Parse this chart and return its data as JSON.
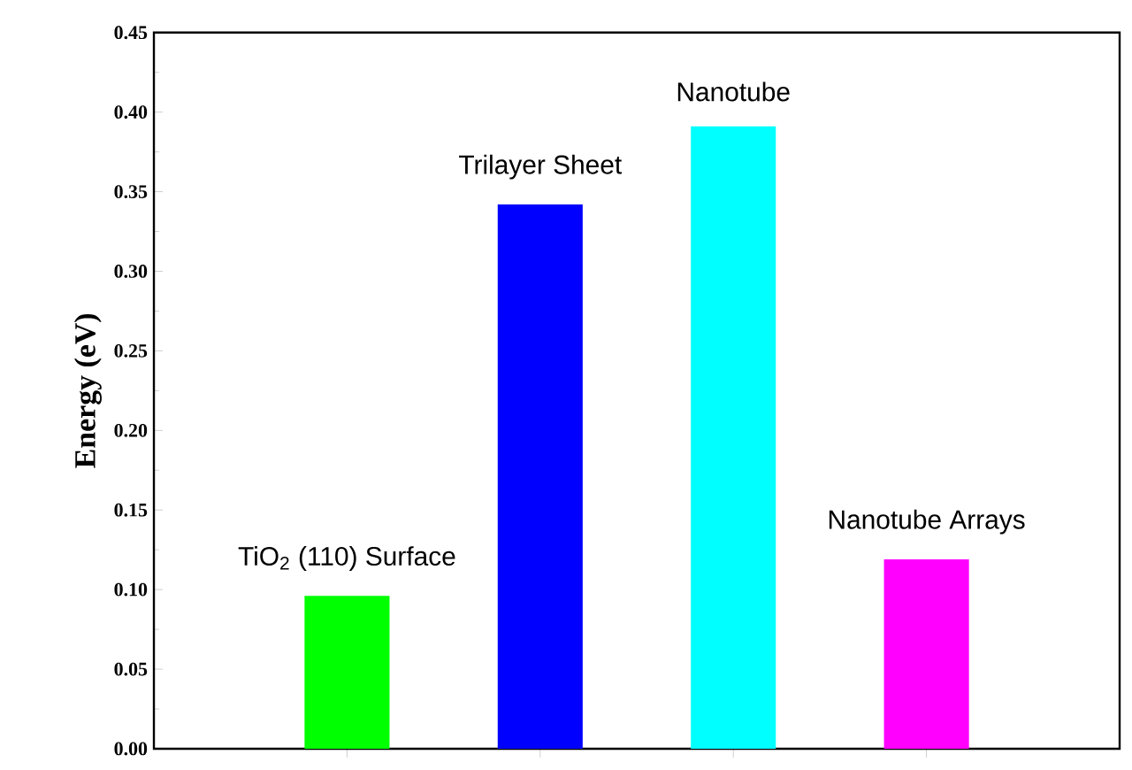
{
  "chart_data": {
    "type": "bar",
    "ylabel": "Energy (eV)",
    "categories": [
      "TiO$_{2}$ (110) Surface",
      "Trilayer Sheet",
      "Nanotube",
      "Nanotube Arrays"
    ],
    "values": [
      0.096,
      0.342,
      0.391,
      0.119
    ],
    "colors": [
      "#00ff00",
      "#0000ff",
      "#00ffff",
      "#ff00ff"
    ],
    "ylim": [
      0,
      0.45
    ],
    "yticks": [
      {
        "value": 0,
        "label": "0.00"
      },
      {
        "value": 0.05,
        "label": "0.05"
      },
      {
        "value": 0.1,
        "label": "0.10"
      },
      {
        "value": 0.15,
        "label": "0.15"
      },
      {
        "value": 0.2,
        "label": "0.20"
      },
      {
        "value": 0.25,
        "label": "0.25"
      },
      {
        "value": 0.3,
        "label": "0.30"
      },
      {
        "value": 0.35,
        "label": "0.35"
      },
      {
        "value": 0.4,
        "label": "0.40"
      },
      {
        "value": 0.45,
        "label": "0.45"
      }
    ],
    "tick_labels": "y"
  }
}
